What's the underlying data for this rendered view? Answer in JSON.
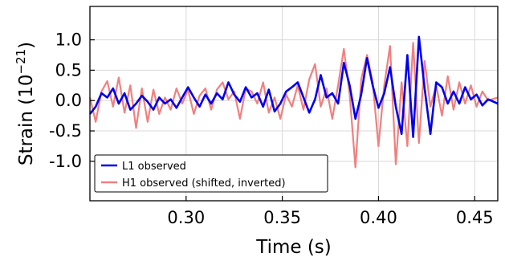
{
  "chart_data": {
    "type": "line",
    "xlabel": "Time (s)",
    "ylabel_prefix": "Strain (10",
    "ylabel_exp": "−21",
    "ylabel_suffix": ")",
    "xlim": [
      0.25,
      0.462
    ],
    "ylim": [
      -1.65,
      1.55
    ],
    "xticks": [
      0.3,
      0.35,
      0.4,
      0.45
    ],
    "xtick_labels": [
      "0.30",
      "0.35",
      "0.40",
      "0.45"
    ],
    "yticks": [
      1.0,
      0.5,
      0.0,
      -0.5,
      -1.0
    ],
    "ytick_labels": [
      "1.0",
      "0.5",
      "0.0",
      "-0.5",
      "-1.0"
    ],
    "grid": true,
    "legend_position": "lower-left",
    "series": [
      {
        "name": "L1 observed",
        "color": "#0000ee",
        "points": [
          [
            0.25,
            -0.22
          ],
          [
            0.253,
            -0.1
          ],
          [
            0.256,
            0.12
          ],
          [
            0.259,
            0.05
          ],
          [
            0.262,
            0.2
          ],
          [
            0.265,
            -0.05
          ],
          [
            0.268,
            0.12
          ],
          [
            0.271,
            -0.15
          ],
          [
            0.274,
            -0.05
          ],
          [
            0.277,
            0.08
          ],
          [
            0.28,
            -0.02
          ],
          [
            0.283,
            -0.15
          ],
          [
            0.286,
            0.05
          ],
          [
            0.289,
            -0.05
          ],
          [
            0.292,
            0.02
          ],
          [
            0.295,
            -0.12
          ],
          [
            0.298,
            0.05
          ],
          [
            0.301,
            0.22
          ],
          [
            0.304,
            0.05
          ],
          [
            0.307,
            -0.1
          ],
          [
            0.31,
            0.1
          ],
          [
            0.313,
            -0.05
          ],
          [
            0.316,
            0.12
          ],
          [
            0.319,
            0.02
          ],
          [
            0.322,
            0.3
          ],
          [
            0.325,
            0.1
          ],
          [
            0.328,
            -0.02
          ],
          [
            0.331,
            0.22
          ],
          [
            0.334,
            0.05
          ],
          [
            0.337,
            0.12
          ],
          [
            0.34,
            -0.1
          ],
          [
            0.343,
            0.18
          ],
          [
            0.346,
            -0.18
          ],
          [
            0.349,
            -0.05
          ],
          [
            0.352,
            0.15
          ],
          [
            0.355,
            0.22
          ],
          [
            0.358,
            0.3
          ],
          [
            0.361,
            0.05
          ],
          [
            0.364,
            -0.2
          ],
          [
            0.367,
            0.02
          ],
          [
            0.37,
            0.42
          ],
          [
            0.373,
            0.05
          ],
          [
            0.376,
            0.12
          ],
          [
            0.379,
            -0.05
          ],
          [
            0.382,
            0.62
          ],
          [
            0.385,
            0.25
          ],
          [
            0.388,
            -0.3
          ],
          [
            0.391,
            0.1
          ],
          [
            0.394,
            0.7
          ],
          [
            0.397,
            0.25
          ],
          [
            0.4,
            -0.12
          ],
          [
            0.403,
            0.12
          ],
          [
            0.406,
            0.55
          ],
          [
            0.409,
            -0.1
          ],
          [
            0.412,
            -0.55
          ],
          [
            0.415,
            0.75
          ],
          [
            0.418,
            -0.6
          ],
          [
            0.421,
            1.05
          ],
          [
            0.424,
            0.2
          ],
          [
            0.427,
            -0.55
          ],
          [
            0.43,
            0.3
          ],
          [
            0.433,
            0.22
          ],
          [
            0.436,
            -0.05
          ],
          [
            0.439,
            0.15
          ],
          [
            0.442,
            -0.05
          ],
          [
            0.445,
            0.22
          ],
          [
            0.448,
            0.02
          ],
          [
            0.451,
            0.1
          ],
          [
            0.454,
            -0.08
          ],
          [
            0.457,
            0.02
          ],
          [
            0.462,
            -0.05
          ]
        ]
      },
      {
        "name": "H1 observed (shifted, inverted)",
        "color": "#f08080",
        "points": [
          [
            0.25,
            0.05
          ],
          [
            0.253,
            -0.35
          ],
          [
            0.256,
            0.15
          ],
          [
            0.259,
            0.32
          ],
          [
            0.262,
            -0.1
          ],
          [
            0.265,
            0.38
          ],
          [
            0.268,
            -0.2
          ],
          [
            0.271,
            0.25
          ],
          [
            0.274,
            -0.45
          ],
          [
            0.277,
            0.2
          ],
          [
            0.28,
            -0.35
          ],
          [
            0.283,
            0.18
          ],
          [
            0.286,
            -0.22
          ],
          [
            0.289,
            0.05
          ],
          [
            0.292,
            -0.15
          ],
          [
            0.295,
            0.2
          ],
          [
            0.298,
            -0.05
          ],
          [
            0.301,
            0.18
          ],
          [
            0.304,
            -0.22
          ],
          [
            0.307,
            0.08
          ],
          [
            0.31,
            0.2
          ],
          [
            0.313,
            -0.15
          ],
          [
            0.316,
            0.18
          ],
          [
            0.319,
            0.3
          ],
          [
            0.322,
            0.02
          ],
          [
            0.325,
            0.15
          ],
          [
            0.328,
            -0.3
          ],
          [
            0.331,
            0.2
          ],
          [
            0.334,
            0.15
          ],
          [
            0.337,
            -0.05
          ],
          [
            0.34,
            0.3
          ],
          [
            0.343,
            -0.2
          ],
          [
            0.346,
            0.05
          ],
          [
            0.349,
            -0.3
          ],
          [
            0.352,
            0.1
          ],
          [
            0.355,
            -0.1
          ],
          [
            0.358,
            0.25
          ],
          [
            0.361,
            -0.15
          ],
          [
            0.364,
            0.35
          ],
          [
            0.367,
            0.6
          ],
          [
            0.37,
            -0.1
          ],
          [
            0.373,
            0.2
          ],
          [
            0.376,
            -0.3
          ],
          [
            0.379,
            0.25
          ],
          [
            0.382,
            0.85
          ],
          [
            0.385,
            0.1
          ],
          [
            0.388,
            -1.1
          ],
          [
            0.391,
            0.35
          ],
          [
            0.394,
            0.75
          ],
          [
            0.397,
            0.3
          ],
          [
            0.4,
            -0.75
          ],
          [
            0.403,
            0.25
          ],
          [
            0.406,
            0.9
          ],
          [
            0.409,
            -1.05
          ],
          [
            0.412,
            0.3
          ],
          [
            0.415,
            -0.75
          ],
          [
            0.418,
            0.95
          ],
          [
            0.421,
            -0.7
          ],
          [
            0.424,
            0.65
          ],
          [
            0.427,
            -0.1
          ],
          [
            0.43,
            0.25
          ],
          [
            0.433,
            -0.25
          ],
          [
            0.436,
            0.4
          ],
          [
            0.439,
            -0.15
          ],
          [
            0.442,
            0.3
          ],
          [
            0.445,
            -0.05
          ],
          [
            0.448,
            0.25
          ],
          [
            0.451,
            -0.1
          ],
          [
            0.454,
            0.15
          ],
          [
            0.457,
            0.0
          ],
          [
            0.462,
            0.05
          ]
        ]
      }
    ]
  }
}
